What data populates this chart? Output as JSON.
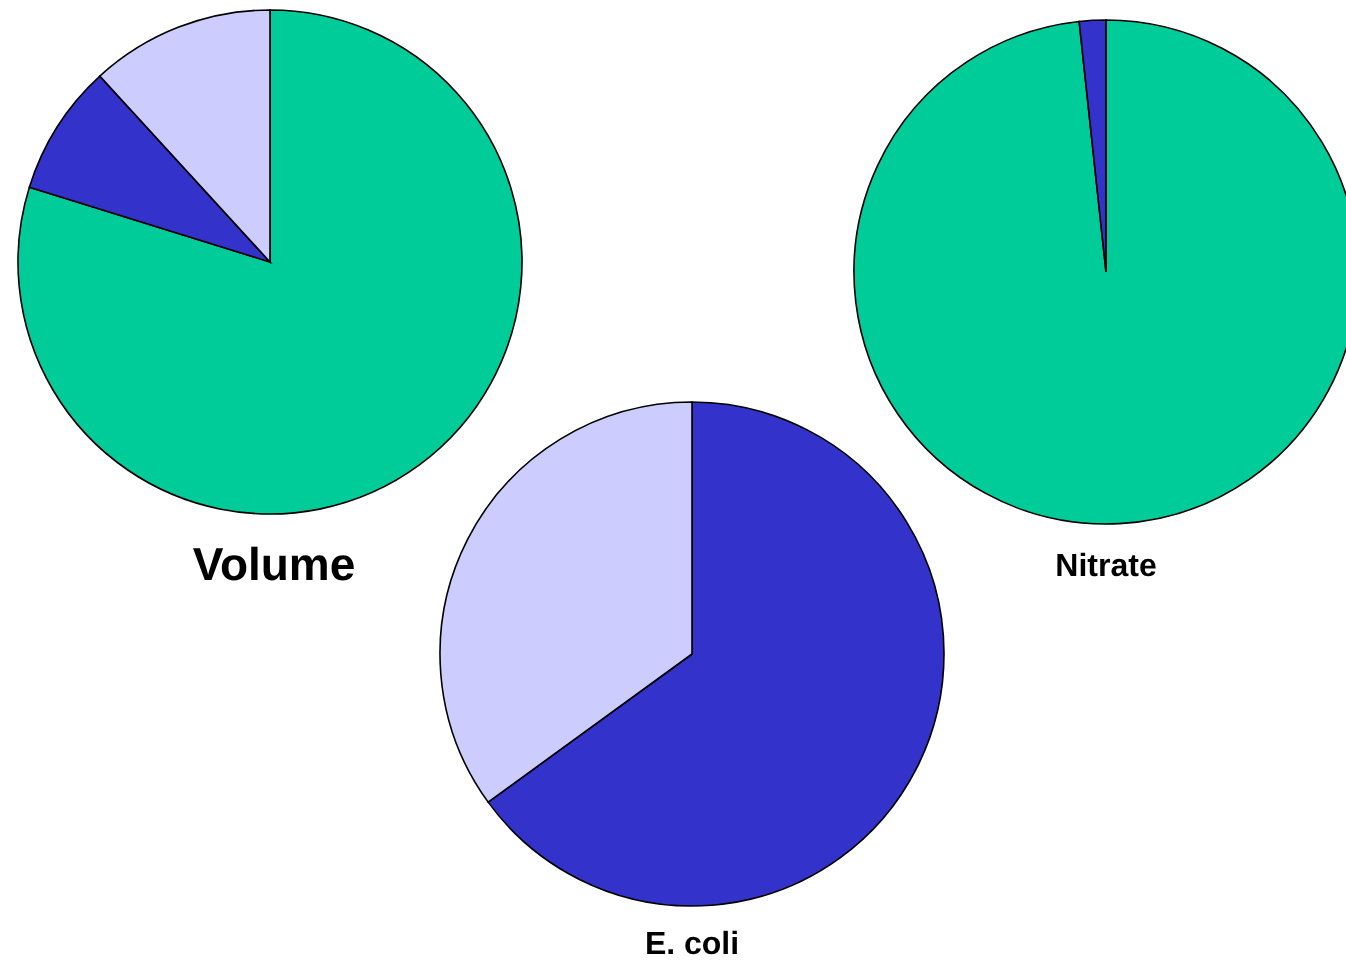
{
  "chart_data": [
    {
      "type": "pie",
      "title": "Volume",
      "categories": [
        null,
        null,
        null
      ],
      "values": [
        79.8,
        8.4,
        11.8
      ],
      "colors": [
        "#00cc99",
        "#3333cc",
        "#ccccff"
      ]
    },
    {
      "type": "pie",
      "title": "Nitrate",
      "categories": [
        null,
        null
      ],
      "values": [
        98.3,
        1.7
      ],
      "colors": [
        "#00cc99",
        "#3333cc"
      ]
    },
    {
      "type": "pie",
      "title": "E. coli",
      "categories": [
        null,
        null
      ],
      "values": [
        65,
        35
      ],
      "colors": [
        "#3333cc",
        "#ccccff"
      ]
    }
  ]
}
